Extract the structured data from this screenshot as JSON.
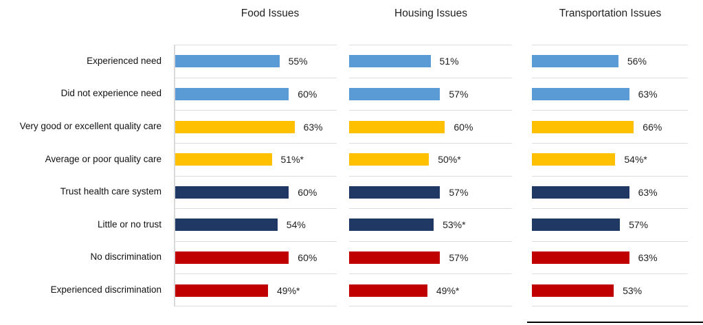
{
  "figure": {
    "background": "#ffffff",
    "palette": {
      "need_bars": "#5B9BD5",
      "quality_care_bars": "#FFC000",
      "trust_bars": "#1F3864",
      "discrimination_bars": "#C00000",
      "gridline": "#dcdcdc",
      "bottom_rule": "#000000"
    }
  },
  "chart_data": [
    {
      "type": "bar",
      "orientation": "horizontal",
      "title": "Food Issues",
      "categories": [
        "Experienced need",
        "Did not experience need",
        "Very good or excellent quality care",
        "Average or poor quality care",
        "Trust health care system",
        "Little or no trust",
        "No discrimination",
        "Experienced discrimination"
      ],
      "values": [
        55,
        60,
        63,
        51,
        60,
        54,
        60,
        49
      ],
      "data_labels": [
        "55%",
        "60%",
        "63%",
        "51%*",
        "60%",
        "54%",
        "60%",
        "49%*"
      ],
      "bar_colors": [
        "#5B9BD5",
        "#5B9BD5",
        "#FFC000",
        "#FFC000",
        "#1F3864",
        "#1F3864",
        "#C00000",
        "#C00000"
      ],
      "xlim": [
        0,
        86
      ],
      "grid": true,
      "legend": "none"
    },
    {
      "type": "bar",
      "orientation": "horizontal",
      "title": "Housing Issues",
      "categories": [
        "Experienced need",
        "Did not experience need",
        "Very good or excellent quality care",
        "Average or poor quality care",
        "Trust health care system",
        "Little or no trust",
        "No discrimination",
        "Experienced discrimination"
      ],
      "values": [
        51,
        57,
        60,
        50,
        57,
        53,
        57,
        49
      ],
      "data_labels": [
        "51%",
        "57%",
        "60%",
        "50%*",
        "57%",
        "53%*",
        "57%",
        "49%*"
      ],
      "bar_colors": [
        "#5B9BD5",
        "#5B9BD5",
        "#FFC000",
        "#FFC000",
        "#1F3864",
        "#1F3864",
        "#C00000",
        "#C00000"
      ],
      "xlim": [
        0,
        102
      ],
      "grid": true,
      "legend": "none"
    },
    {
      "type": "bar",
      "orientation": "horizontal",
      "title": "Transportation Issues",
      "categories": [
        "Experienced need",
        "Did not experience need",
        "Very good or excellent quality care",
        "Average or poor quality care",
        "Trust health care system",
        "Little or no trust",
        "No discrimination",
        "Experienced discrimination"
      ],
      "values": [
        56,
        63,
        66,
        54,
        63,
        57,
        63,
        53
      ],
      "data_labels": [
        "56%",
        "63%",
        "66%",
        "54%*",
        "63%",
        "57%",
        "63%",
        "53%"
      ],
      "bar_colors": [
        "#5B9BD5",
        "#5B9BD5",
        "#FFC000",
        "#FFC000",
        "#1F3864",
        "#1F3864",
        "#C00000",
        "#C00000"
      ],
      "xlim": [
        0,
        101
      ],
      "grid": true,
      "legend": "none"
    }
  ]
}
